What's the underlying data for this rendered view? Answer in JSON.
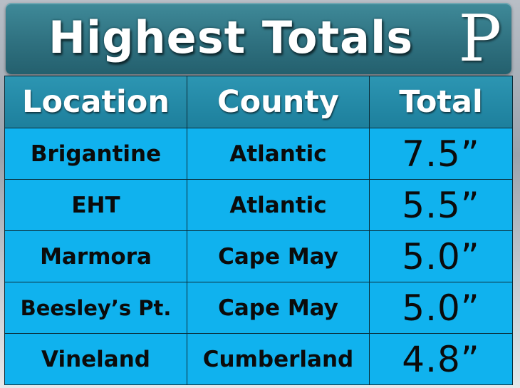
{
  "header": {
    "title": "Highest Totals",
    "logo_letter": "P"
  },
  "table": {
    "columns": [
      "Location",
      "County",
      "Total"
    ],
    "rows": [
      {
        "location": "Brigantine",
        "county": "Atlantic",
        "total": "7.5”"
      },
      {
        "location": "EHT",
        "county": "Atlantic",
        "total": "5.5”"
      },
      {
        "location": "Marmora",
        "county": "Cape May",
        "total": "5.0”"
      },
      {
        "location": "Beesley’s Pt.",
        "county": "Cape May",
        "total": "5.0”"
      },
      {
        "location": "Vineland",
        "county": "Cumberland",
        "total": "4.8”"
      }
    ]
  },
  "colors": {
    "banner": "#2f7180",
    "header_row": "#1d7f9c",
    "cell": "#10b2ee",
    "border": "#0a2c38"
  }
}
